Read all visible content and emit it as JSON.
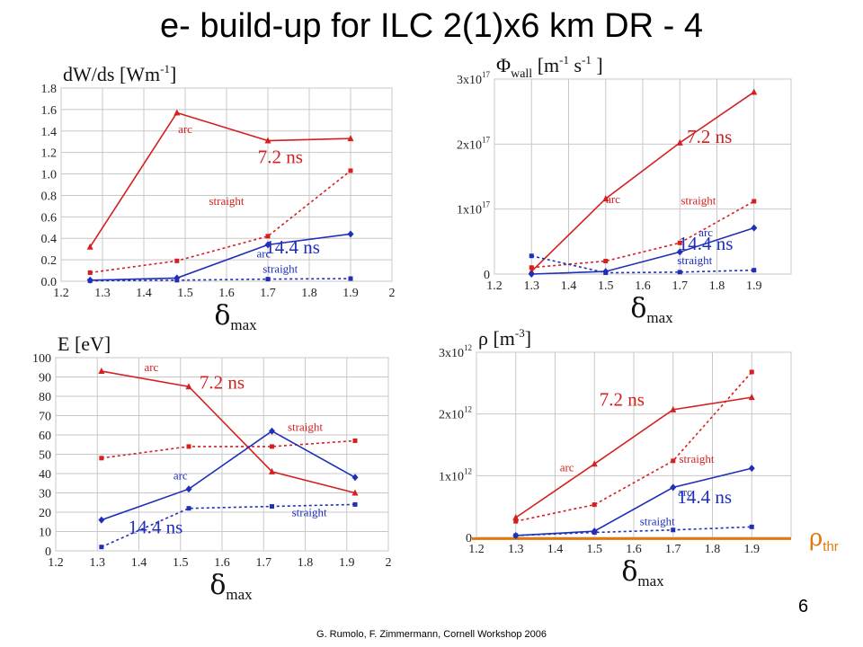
{
  "title": "e- build-up for ILC 2(1)x6 km DR - 4",
  "threshold_label": {
    "symbol": "ρ",
    "sub": "thr"
  },
  "page_number": "6",
  "footer": "G. Rumolo, F. Zimmermann, Cornell Workshop 2006",
  "colors": {
    "red": "#d42020",
    "blue": "#1f2fb8",
    "threshold": "#e07a10"
  },
  "chart_data": [
    {
      "type": "line",
      "ylabel_main": "dW/ds [Wm",
      "ylabel_sup": "-1",
      "ylabel_tail": "]",
      "xlabel_main": "δ",
      "xlabel_sub": "max",
      "xlim": [
        1.2,
        2
      ],
      "ylim": [
        0,
        1.8
      ],
      "xticks": [
        "1.2",
        "1.3",
        "1.4",
        "1.5",
        "1.6",
        "1.7",
        "1.8",
        "1.9",
        "2"
      ],
      "yticks": [
        "0.0",
        "0.2",
        "0.4",
        "0.6",
        "0.8",
        "1.0",
        "1.2",
        "1.4",
        "1.6",
        "1.8"
      ],
      "series": [
        {
          "name": "arc",
          "color": "red",
          "dashed": false,
          "marker": "triangle",
          "x": [
            1.27,
            1.48,
            1.7,
            1.9
          ],
          "y": [
            0.32,
            1.57,
            1.31,
            1.33
          ]
        },
        {
          "name": "straight",
          "color": "red",
          "dashed": true,
          "marker": "square",
          "x": [
            1.27,
            1.48,
            1.7,
            1.9
          ],
          "y": [
            0.08,
            0.19,
            0.42,
            1.03
          ]
        },
        {
          "name": "arc",
          "color": "blue",
          "dashed": false,
          "marker": "diamond",
          "x": [
            1.27,
            1.48,
            1.7,
            1.9
          ],
          "y": [
            0.01,
            0.03,
            0.34,
            0.44
          ]
        },
        {
          "name": "straight",
          "color": "blue",
          "dashed": true,
          "marker": "square",
          "x": [
            1.27,
            1.48,
            1.7,
            1.9
          ],
          "y": [
            0.005,
            0.01,
            0.02,
            0.025
          ]
        }
      ],
      "annotations": [
        {
          "text": "arc",
          "x": 1.5,
          "y": 1.38,
          "color": "red",
          "size": 13
        },
        {
          "text": "7.2 ns",
          "x": 1.73,
          "y": 1.1,
          "color": "red",
          "size": 21
        },
        {
          "text": "straight",
          "x": 1.6,
          "y": 0.71,
          "color": "red",
          "size": 13
        },
        {
          "text": "arc",
          "x": 1.69,
          "y": 0.22,
          "color": "blue",
          "size": 13
        },
        {
          "text": "14.4 ns",
          "x": 1.76,
          "y": 0.26,
          "color": "blue",
          "size": 21
        },
        {
          "text": "straight",
          "x": 1.73,
          "y": 0.08,
          "color": "blue",
          "size": 13
        }
      ]
    },
    {
      "type": "line",
      "ylabel_main": "Φ",
      "ylabel_sub": "wall",
      "ylabel_tail": " [m",
      "ylabel_sup": "-1",
      "ylabel_tail2": " s",
      "ylabel_sup2": "-1",
      "ylabel_tail3": " ]",
      "xlabel_main": "δ",
      "xlabel_sub": "max",
      "xlim": [
        1.2,
        2
      ],
      "ylim": [
        0,
        3
      ],
      "xticks": [
        "1.2",
        "1.3",
        "1.4",
        "1.5",
        "1.6",
        "1.7",
        "1.8",
        "1.9"
      ],
      "yticks": [
        {
          "v": 0,
          "base": "0",
          "exp": ""
        },
        {
          "v": 1,
          "base": "1x10",
          "exp": "17"
        },
        {
          "v": 2,
          "base": "2x10",
          "exp": "17"
        },
        {
          "v": 3,
          "base": "3x10",
          "exp": "17"
        }
      ],
      "series": [
        {
          "name": "arc",
          "color": "red",
          "dashed": false,
          "marker": "triangle",
          "x": [
            1.3,
            1.5,
            1.7,
            1.9
          ],
          "y": [
            0.04,
            1.16,
            2.02,
            2.8
          ]
        },
        {
          "name": "straight",
          "color": "red",
          "dashed": true,
          "marker": "square",
          "x": [
            1.3,
            1.5,
            1.7,
            1.9
          ],
          "y": [
            0.1,
            0.2,
            0.48,
            1.12
          ]
        },
        {
          "name": "arc",
          "color": "blue",
          "dashed": false,
          "marker": "diamond",
          "x": [
            1.3,
            1.5,
            1.7,
            1.9
          ],
          "y": [
            0.0,
            0.04,
            0.34,
            0.71
          ]
        },
        {
          "name": "straight",
          "color": "blue",
          "dashed": true,
          "marker": "square",
          "x": [
            1.3,
            1.5,
            1.7,
            1.9
          ],
          "y": [
            0.28,
            0.02,
            0.03,
            0.06
          ]
        }
      ],
      "annotations": [
        {
          "text": "arc",
          "x": 1.52,
          "y": 1.09,
          "color": "red",
          "size": 13
        },
        {
          "text": "7.2 ns",
          "x": 1.78,
          "y": 2.02,
          "color": "red",
          "size": 21
        },
        {
          "text": "straight",
          "x": 1.75,
          "y": 1.07,
          "color": "red",
          "size": 13
        },
        {
          "text": "arc",
          "x": 1.77,
          "y": 0.58,
          "color": "blue",
          "size": 13
        },
        {
          "text": "14.4 ns",
          "x": 1.77,
          "y": 0.37,
          "color": "blue",
          "size": 21
        },
        {
          "text": "straight",
          "x": 1.74,
          "y": 0.15,
          "color": "blue",
          "size": 13
        }
      ]
    },
    {
      "type": "line",
      "ylabel_main": "E [eV]",
      "xlabel_main": "δ",
      "xlabel_sub": "max",
      "xlim": [
        1.2,
        2
      ],
      "ylim": [
        0,
        100
      ],
      "xticks": [
        "1.2",
        "1.3",
        "1.4",
        "1.5",
        "1.6",
        "1.7",
        "1.8",
        "1.9",
        "2"
      ],
      "yticks": [
        "0",
        "10",
        "20",
        "30",
        "40",
        "50",
        "60",
        "70",
        "80",
        "90",
        "100"
      ],
      "series": [
        {
          "name": "arc",
          "color": "red",
          "dashed": false,
          "marker": "triangle",
          "x": [
            1.31,
            1.52,
            1.72,
            1.92
          ],
          "y": [
            93,
            85,
            41,
            30
          ]
        },
        {
          "name": "straight",
          "color": "red",
          "dashed": true,
          "marker": "square",
          "x": [
            1.31,
            1.52,
            1.72,
            1.92
          ],
          "y": [
            48,
            54,
            54,
            57
          ]
        },
        {
          "name": "arc",
          "color": "blue",
          "dashed": false,
          "marker": "diamond",
          "x": [
            1.31,
            1.52,
            1.72,
            1.92
          ],
          "y": [
            16,
            32,
            62,
            38
          ]
        },
        {
          "name": "straight",
          "color": "blue",
          "dashed": true,
          "marker": "square",
          "x": [
            1.31,
            1.52,
            1.72,
            1.92
          ],
          "y": [
            2,
            22,
            23,
            24
          ]
        }
      ],
      "annotations": [
        {
          "text": "arc",
          "x": 1.43,
          "y": 93,
          "color": "red",
          "size": 13
        },
        {
          "text": "7.2 ns",
          "x": 1.6,
          "y": 84,
          "color": "red",
          "size": 21
        },
        {
          "text": "straight",
          "x": 1.8,
          "y": 62,
          "color": "red",
          "size": 13
        },
        {
          "text": "arc",
          "x": 1.5,
          "y": 37,
          "color": "blue",
          "size": 13
        },
        {
          "text": "14.4 ns",
          "x": 1.44,
          "y": 9,
          "color": "blue",
          "size": 21
        },
        {
          "text": "straight",
          "x": 1.81,
          "y": 18,
          "color": "blue",
          "size": 13
        }
      ]
    },
    {
      "type": "line",
      "ylabel_main": "ρ [m",
      "ylabel_sup": "-3",
      "ylabel_tail": "]",
      "xlabel_main": "δ",
      "xlabel_sub": "max",
      "xlim": [
        1.2,
        2
      ],
      "ylim": [
        0,
        3
      ],
      "xticks": [
        "1.2",
        "1.3",
        "1.4",
        "1.5",
        "1.6",
        "1.7",
        "1.8",
        "1.9"
      ],
      "yticks": [
        {
          "v": 0,
          "base": "0",
          "exp": ""
        },
        {
          "v": 1,
          "base": "1x10",
          "exp": "12"
        },
        {
          "v": 2,
          "base": "2x10",
          "exp": "12"
        },
        {
          "v": 3,
          "base": "3x10",
          "exp": "12"
        }
      ],
      "threshold_y": -0.02,
      "series": [
        {
          "name": "arc",
          "color": "red",
          "dashed": false,
          "marker": "triangle",
          "x": [
            1.3,
            1.5,
            1.7,
            1.9
          ],
          "y": [
            0.32,
            1.19,
            2.07,
            2.27
          ]
        },
        {
          "name": "straight",
          "color": "red",
          "dashed": true,
          "marker": "square",
          "x": [
            1.3,
            1.5,
            1.7,
            1.9
          ],
          "y": [
            0.26,
            0.53,
            1.24,
            2.68
          ]
        },
        {
          "name": "arc",
          "color": "blue",
          "dashed": false,
          "marker": "diamond",
          "x": [
            1.3,
            1.5,
            1.7,
            1.9
          ],
          "y": [
            0.03,
            0.1,
            0.81,
            1.12
          ]
        },
        {
          "name": "straight",
          "color": "blue",
          "dashed": true,
          "marker": "square",
          "x": [
            1.3,
            1.5,
            1.7,
            1.9
          ],
          "y": [
            0.03,
            0.08,
            0.12,
            0.17
          ]
        }
      ],
      "annotations": [
        {
          "text": "7.2 ns",
          "x": 1.57,
          "y": 2.13,
          "color": "red",
          "size": 21
        },
        {
          "text": "arc",
          "x": 1.43,
          "y": 1.07,
          "color": "red",
          "size": 13
        },
        {
          "text": "straight",
          "x": 1.76,
          "y": 1.21,
          "color": "red",
          "size": 13
        },
        {
          "text": "arc",
          "x": 1.73,
          "y": 0.67,
          "color": "blue",
          "size": 13
        },
        {
          "text": "14.4 ns",
          "x": 1.78,
          "y": 0.55,
          "color": "blue",
          "size": 21
        },
        {
          "text": "straight",
          "x": 1.66,
          "y": 0.2,
          "color": "blue",
          "size": 13
        }
      ]
    }
  ]
}
